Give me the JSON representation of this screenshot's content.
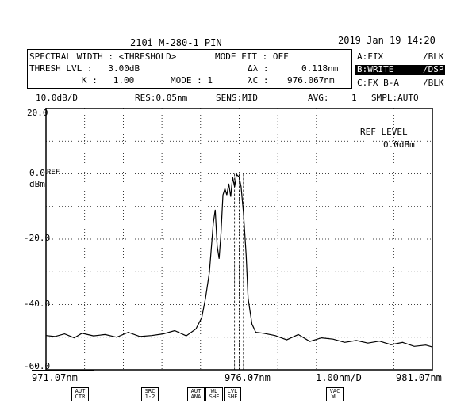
{
  "header": {
    "title": "210i M-280-1 PIN",
    "datetime": "2019 Jan 19 14:20"
  },
  "analysis": {
    "line1_left": "SPECTRAL WIDTH : <THRESHOLD>",
    "line1_mode_fit": "MODE FIT : OFF",
    "line2_thresh": "THRESH LVL :   3.00dB",
    "line2_dl_label": "Δλ :",
    "line2_dl_value": "0.118nm",
    "line3_k": "K :   1.00",
    "line3_mode": "MODE : 1",
    "line3_lc_label": "λC :",
    "line3_lc_value": "976.067nm"
  },
  "traces": {
    "a": {
      "label": "A:FIX",
      "status": "/BLK"
    },
    "b": {
      "label": "B:WRITE",
      "status": "/DSP"
    },
    "c": {
      "label": "C:FX B-A",
      "status": "/BLK"
    }
  },
  "settings": {
    "scale": "10.0dB/D",
    "res": "RES:0.05nm",
    "sens": "SENS:MID",
    "avg_label": "AVG:",
    "avg_value": "1",
    "smpl": "SMPL:AUTO"
  },
  "yaxis": {
    "ticks": [
      "20.0",
      "0.0",
      "-20.0",
      "-40.0",
      "-60.0"
    ],
    "unit": "dBm",
    "ref_marker": "REF"
  },
  "ref_level": {
    "label": "REF LEVEL",
    "value": "0.0dBm"
  },
  "xaxis": {
    "start": "971.07nm",
    "center": "976.07nm",
    "span": "1.00nm/D",
    "stop": "981.07nm"
  },
  "softkeys": [
    {
      "line1": "AUT",
      "line2": "CTR"
    },
    {
      "line1": "SRC",
      "line2": "1-2"
    },
    {
      "line1": "AUT",
      "line2": "ANA"
    },
    {
      "line1": "WL",
      "line2": "SHF"
    },
    {
      "line1": "LVL",
      "line2": "SHF"
    },
    {
      "line1": "VAC",
      "line2": "WL"
    }
  ],
  "chart_data": {
    "type": "line",
    "xlim": [
      971.07,
      981.07
    ],
    "ylim": [
      -60,
      20
    ],
    "xunit": "nm",
    "yunit": "dBm",
    "grid": true,
    "series": [
      {
        "x": [
          971.07,
          971.3,
          971.55,
          971.8,
          972.0,
          972.3,
          972.6,
          972.9,
          973.2,
          973.5,
          973.8,
          974.1,
          974.4,
          974.7,
          974.95,
          975.1,
          975.2,
          975.3,
          975.4,
          975.45,
          975.5,
          975.55,
          975.6,
          975.65,
          975.7,
          975.75,
          975.8,
          975.85,
          975.9,
          975.95,
          976.0,
          976.07,
          976.12,
          976.18,
          976.25,
          976.3,
          976.4,
          976.5,
          976.7,
          977.0,
          977.3,
          977.6,
          977.9,
          978.2,
          978.5,
          978.8,
          979.1,
          979.4,
          979.7,
          980.0,
          980.3,
          980.6,
          980.9,
          981.07
        ],
        "y": [
          -49.5,
          -49.8,
          -49,
          -50.2,
          -48.8,
          -49.6,
          -49.2,
          -50,
          -48.5,
          -49.8,
          -49.5,
          -49,
          -48,
          -49.6,
          -47.5,
          -44,
          -38,
          -30,
          -15,
          -11,
          -22,
          -26,
          -18,
          -6.5,
          -4.5,
          -6.5,
          -3,
          -7,
          -1,
          -4,
          -0.2,
          -1,
          -4,
          -12,
          -25,
          -38,
          -46,
          -48.5,
          -48.8,
          -49.5,
          -50.8,
          -49.2,
          -51.3,
          -50.2,
          -50.6,
          -51.6,
          -51,
          -51.8,
          -51.2,
          -52.3,
          -51.6,
          -52.8,
          -52.4,
          -53
        ]
      }
    ],
    "markers_x": [
      975.95,
      976.07,
      976.18
    ]
  }
}
